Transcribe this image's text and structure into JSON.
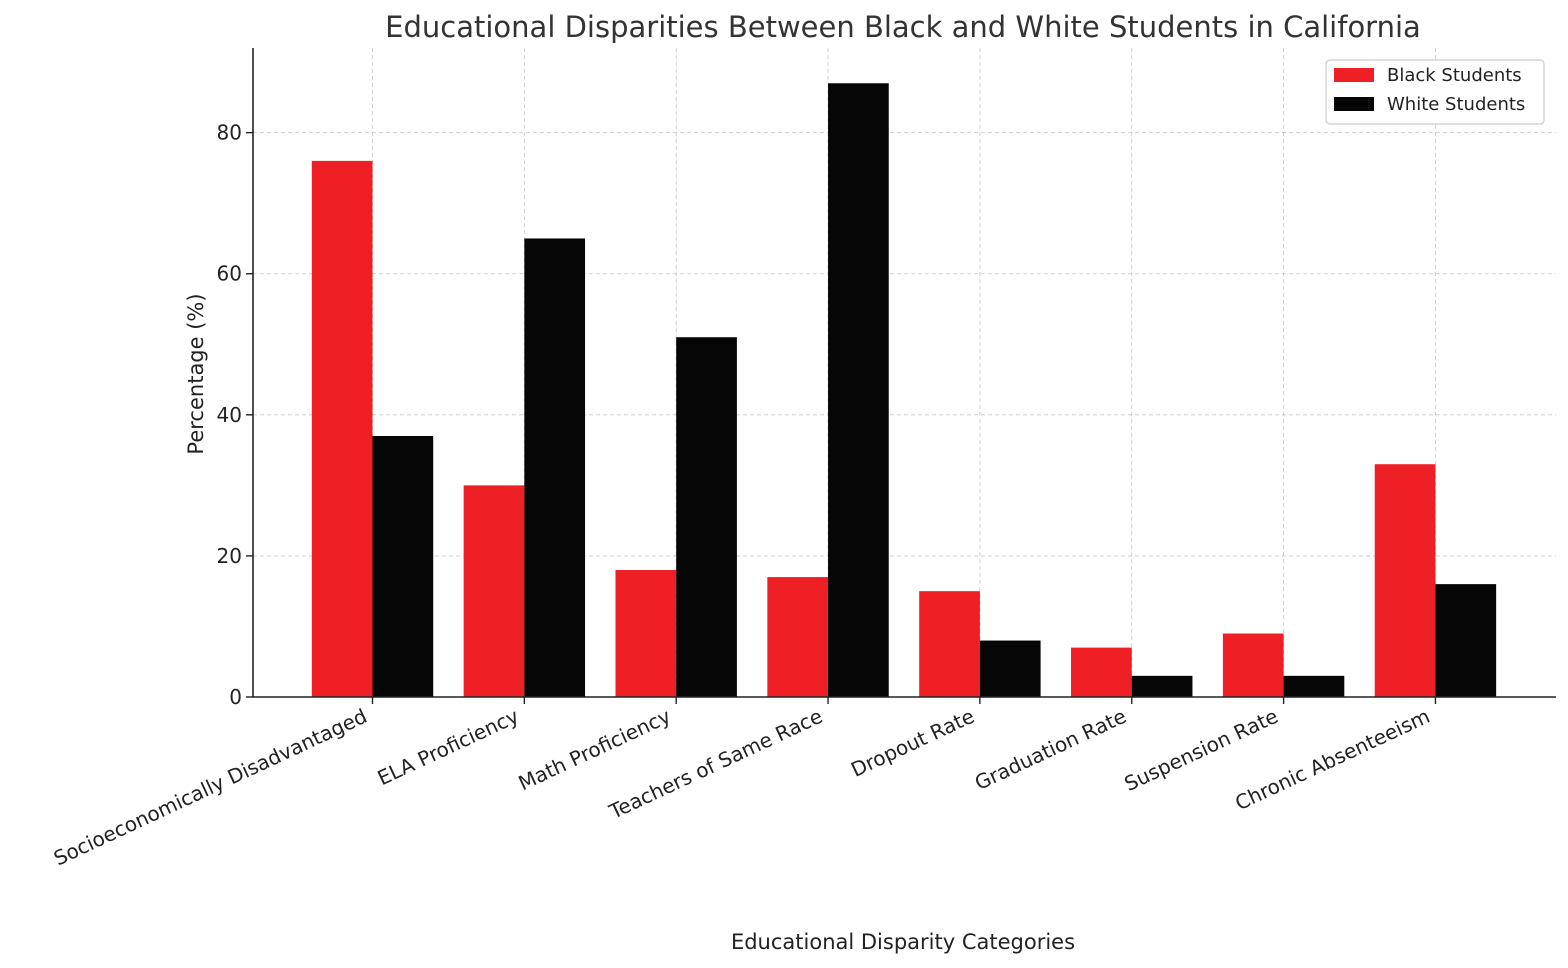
{
  "chart_data": {
    "type": "bar",
    "title": "Educational Disparities Between Black and White Students in California",
    "xlabel": "Educational Disparity Categories",
    "ylabel": "Percentage (%)",
    "ylim": [
      0,
      92
    ],
    "yticks": [
      0,
      20,
      40,
      60,
      80
    ],
    "grid": true,
    "legend_position": "top-right",
    "categories": [
      "Socioeconomically Disadvantaged",
      "ELA Proficiency",
      "Math Proficiency",
      "Teachers of Same Race",
      "Dropout Rate",
      "Graduation Rate",
      "Suspension Rate",
      "Chronic Absenteeism"
    ],
    "series": [
      {
        "name": "Black Students",
        "color": "#ee1f25",
        "values": [
          76,
          30,
          18,
          17,
          15,
          7,
          9,
          33
        ]
      },
      {
        "name": "White Students",
        "color": "#060606",
        "values": [
          37,
          65,
          51,
          87,
          8,
          3,
          3,
          16
        ]
      }
    ]
  }
}
